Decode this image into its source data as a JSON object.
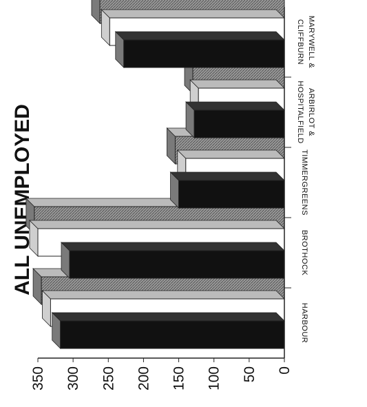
{
  "chart_data": {
    "type": "bar",
    "title": "ALL UNEMPLOYED",
    "categories": [
      "HARBOUR",
      "BROTHOCK",
      "TIMMERGREENS",
      "ARBIRLOT & HOSPITALFIELD",
      "MARYWELL & CLIFFBURN"
    ],
    "series": [
      {
        "values": [
          318,
          305,
          150,
          128,
          228
        ]
      },
      {
        "values": [
          332,
          350,
          140,
          122,
          248
        ]
      },
      {
        "values": [
          345,
          355,
          155,
          130,
          262
        ]
      }
    ],
    "ylim": [
      0,
      350
    ],
    "yticks": [
      "0",
      "50",
      "100",
      "150",
      "200",
      "250",
      "300",
      "350"
    ],
    "grid": false,
    "colors": {
      "series": [
        "#111111",
        "#ffffff",
        "#8a8a8a"
      ],
      "axis": "#222222"
    }
  }
}
